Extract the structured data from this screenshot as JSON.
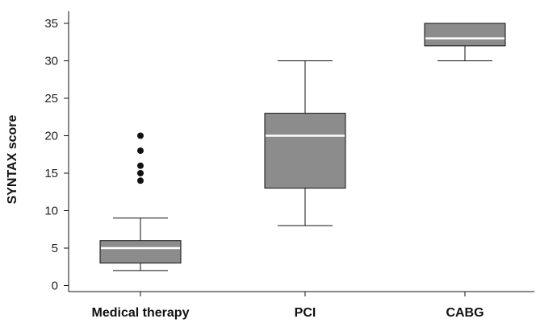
{
  "chart_data": {
    "type": "boxplot",
    "ylabel": "SYNTAX score",
    "ylim": [
      0,
      36
    ],
    "yticks": [
      0,
      5,
      10,
      15,
      20,
      25,
      30,
      35
    ],
    "grid": false,
    "categories": [
      "Medical therapy",
      "PCI",
      "CABG"
    ],
    "boxes": [
      {
        "category": "Medical therapy",
        "whisker_low": 2,
        "q1": 3,
        "median": 5,
        "q3": 6,
        "whisker_high": 9,
        "outliers": [
          14,
          15,
          16,
          18,
          20
        ]
      },
      {
        "category": "PCI",
        "whisker_low": 8,
        "q1": 13,
        "median": 20,
        "q3": 23,
        "whisker_high": 30,
        "outliers": []
      },
      {
        "category": "CABG",
        "whisker_low": 30,
        "q1": 32,
        "median": 33,
        "q3": 35,
        "whisker_high": 35,
        "outliers": []
      }
    ],
    "colors": {
      "box_fill": "#8c8c8c",
      "median_line": "#ffffff",
      "outline": "#111111"
    }
  }
}
